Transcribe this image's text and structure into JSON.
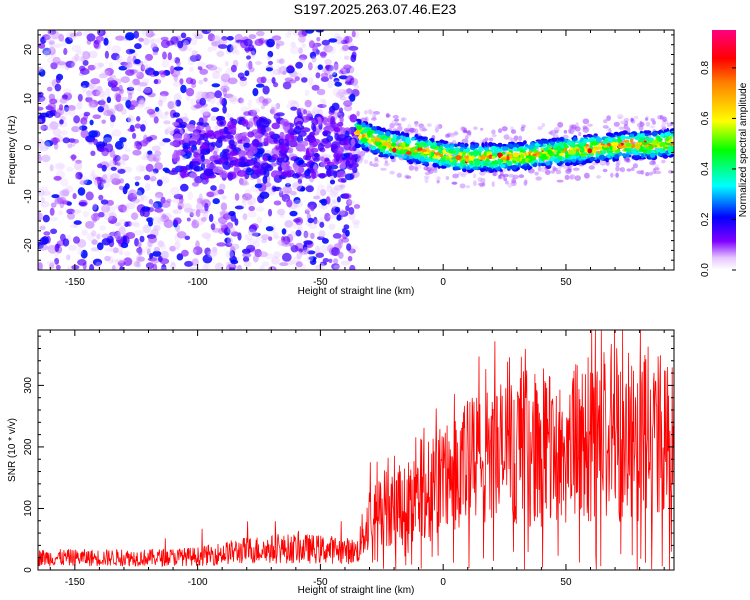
{
  "title": "S197.2025.263.07.46.E23",
  "chart_data": [
    {
      "type": "heatmap",
      "title": "S197.2025.263.07.46.E23",
      "xlabel": "Height of straight line (km)",
      "ylabel": "Frequency (Hz)",
      "xlim": [
        -165,
        94
      ],
      "ylim": [
        -25,
        24
      ],
      "xticks": [
        -150,
        -100,
        -50,
        0,
        50
      ],
      "yticks": [
        -20,
        -10,
        0,
        10,
        20
      ],
      "colorbar": {
        "label": "Normalized spectral amplitude",
        "range": [
          0,
          0.95
        ],
        "ticks": [
          0.0,
          0.2,
          0.4,
          0.6,
          0.8
        ],
        "colormap": "rainbow (white-lavender-violet-blue-cyan-green-yellow-orange-red-magenta)"
      },
      "regions": [
        {
          "x": [
            -165,
            -35
          ],
          "description": "scattered noise, broadband",
          "amplitude": 0.1
        },
        {
          "x": [
            -110,
            -35
          ],
          "y": [
            -5,
            5
          ],
          "description": "denser noise band",
          "amplitude": 0.12
        },
        {
          "x": [
            -35,
            94
          ],
          "description": "signal band",
          "amplitude_peak": 0.9
        }
      ],
      "ridge": {
        "x": [
          -35,
          -25,
          -15,
          -5,
          5,
          15,
          25,
          35,
          45,
          55,
          65,
          75,
          85,
          94
        ],
        "y": [
          3,
          1,
          0,
          -1,
          -2,
          -2,
          -2,
          -1.5,
          -1,
          -0.5,
          0,
          0.5,
          0.5,
          1
        ]
      }
    },
    {
      "type": "line",
      "xlabel": "Height of straight line (km)",
      "ylabel": "SNR (10 * v/v)",
      "xlim": [
        -165,
        94
      ],
      "ylim": [
        0,
        390
      ],
      "xticks": [
        -150,
        -100,
        -50,
        0,
        50
      ],
      "yticks": [
        0,
        100,
        200,
        300
      ],
      "color": "#ff0000",
      "series": [
        {
          "name": "SNR",
          "x": [
            -165,
            -140,
            -120,
            -100,
            -80,
            -60,
            -45,
            -35,
            -30,
            -25,
            -15,
            -5,
            5,
            15,
            25,
            35,
            45,
            55,
            65,
            75,
            85,
            94
          ],
          "y": [
            20,
            20,
            20,
            22,
            32,
            35,
            33,
            30,
            90,
            100,
            110,
            130,
            160,
            180,
            190,
            200,
            190,
            205,
            210,
            215,
            220,
            205
          ]
        }
      ]
    }
  ]
}
